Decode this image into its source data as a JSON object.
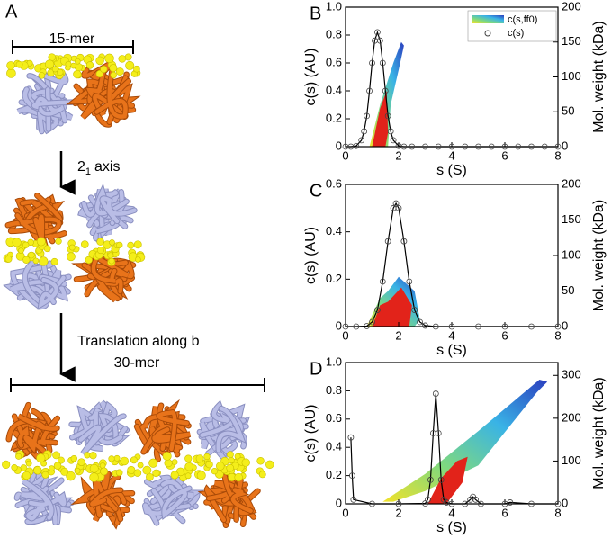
{
  "diagram": {
    "panel_label": "A",
    "top_label": "15-mer",
    "axis_label": {
      "base": "2",
      "subscript": "1",
      "text": "axis"
    },
    "translation_label": "Translation along b",
    "bottom_label": "30-mer"
  },
  "chart_data": [
    {
      "type": "line",
      "panel_label": "B",
      "x_label": "s (S)",
      "y_label": "c(s) (AU)",
      "y2_label": "Mol. weight (kDa)",
      "xlim": [
        0,
        8
      ],
      "xticks": [
        0,
        2,
        4,
        6,
        8
      ],
      "ylim": [
        0,
        1
      ],
      "yticks": [
        0,
        0.2,
        0.4,
        0.6,
        0.8,
        {
          "value": 1,
          "label": "1.0"
        }
      ],
      "y2lim": [
        0,
        200
      ],
      "y2ticks": [
        0,
        50,
        100,
        150,
        200
      ],
      "series": [
        {
          "name": "c(s)",
          "color": "#000000",
          "x": [
            0,
            0.2,
            0.4,
            0.6,
            0.7,
            0.8,
            0.9,
            1.0,
            1.1,
            1.2,
            1.3,
            1.4,
            1.5,
            1.6,
            1.7,
            1.8,
            2.0,
            2.2,
            2.5,
            3,
            3.5,
            4,
            4.5,
            5,
            5.5,
            6,
            6.5,
            7,
            7.5,
            8
          ],
          "values": [
            0,
            0,
            0.005,
            0.046,
            0.11,
            0.22,
            0.4,
            0.6,
            0.76,
            0.82,
            0.76,
            0.6,
            0.4,
            0.22,
            0.11,
            0.046,
            0.005,
            0,
            0,
            0,
            0,
            0,
            0,
            0,
            0,
            0,
            0,
            0,
            0,
            0
          ]
        }
      ],
      "contour": {
        "name": "c(s,ff0)",
        "axis": "y2",
        "x": [
          0.9,
          1.3,
          1.8,
          2.1,
          2.2,
          2.0,
          1.7,
          1.6,
          1.5,
          1.2
        ],
        "values": [
          0,
          60,
          120,
          150,
          145,
          110,
          60,
          0,
          0,
          0
        ]
      },
      "contour_core": {
        "axis": "y2",
        "x": [
          1.0,
          1.3,
          1.55,
          1.6,
          1.5
        ],
        "values": [
          0,
          55,
          80,
          20,
          0
        ]
      },
      "contour_colors": [
        "#2b3fbf",
        "#39b3e6",
        "#7fd97f",
        "#f2e22a",
        "#e2231a"
      ],
      "legend": "top-right"
    },
    {
      "type": "line",
      "panel_label": "C",
      "x_label": "s (S)",
      "y_label": "c(s) (AU)",
      "y2_label": "Mol. weight (kDa)",
      "xlim": [
        0,
        8
      ],
      "xticks": [
        0,
        2,
        4,
        6,
        8
      ],
      "ylim": [
        0,
        0.6
      ],
      "yticks": [
        0,
        0.2,
        0.4,
        0.6
      ],
      "y2lim": [
        0,
        200
      ],
      "y2ticks": [
        0,
        50,
        100,
        150,
        200
      ],
      "series": [
        {
          "color": "#000000",
          "x": [
            0,
            0.4,
            0.8,
            1.0,
            1.2,
            1.4,
            1.6,
            1.8,
            1.9,
            2.0,
            2.2,
            2.4,
            2.6,
            2.8,
            3.0,
            3.4,
            4,
            5,
            6,
            7,
            8
          ],
          "values": [
            0,
            0,
            0.002,
            0.019,
            0.07,
            0.19,
            0.36,
            0.5,
            0.52,
            0.5,
            0.36,
            0.19,
            0.07,
            0.019,
            0.004,
            0,
            0,
            0,
            0,
            0,
            0
          ]
        }
      ],
      "contour": {
        "axis": "y2",
        "x": [
          0.8,
          1.3,
          1.6,
          2.0,
          2.6,
          2.8,
          2.6,
          2.2,
          1.4
        ],
        "values": [
          0,
          40,
          50,
          70,
          50,
          10,
          0,
          0,
          0
        ]
      },
      "contour_core": {
        "axis": "y2",
        "x": [
          1.0,
          1.3,
          1.6,
          2.1,
          2.5,
          2.4,
          1.2
        ],
        "values": [
          0,
          30,
          35,
          55,
          30,
          0,
          0
        ]
      },
      "contour_colors": [
        "#2b3fbf",
        "#39b3e6",
        "#7fd97f",
        "#f2e22a",
        "#e2231a"
      ]
    },
    {
      "type": "line",
      "panel_label": "D",
      "x_label": "s (S)",
      "y_label": "c(s) (AU)",
      "y2_label": "Mol. weight (kDa)",
      "xlim": [
        0,
        8
      ],
      "xticks": [
        0,
        2,
        4,
        6,
        8
      ],
      "ylim": [
        0,
        1
      ],
      "yticks": [
        0,
        0.2,
        0.4,
        0.6,
        0.8,
        {
          "value": 1,
          "label": "1.0"
        }
      ],
      "y2lim": [
        0,
        330
      ],
      "y2ticks": [
        0,
        100,
        200,
        300
      ],
      "series": [
        {
          "color": "#000000",
          "x": [
            0.2,
            0.25,
            0.3,
            1,
            2,
            3.0,
            3.1,
            3.2,
            3.3,
            3.4,
            3.5,
            3.6,
            3.7,
            3.8,
            4.0,
            4.5,
            4.7,
            4.8,
            4.9,
            5.1,
            6,
            6.2,
            7,
            8
          ],
          "values": [
            0.47,
            0.2,
            0.03,
            0,
            0,
            0.003,
            0.03,
            0.17,
            0.5,
            0.78,
            0.5,
            0.17,
            0.03,
            0.01,
            0,
            0,
            0.03,
            0.05,
            0.03,
            0,
            0,
            0.01,
            0,
            0
          ]
        }
      ],
      "contour": {
        "axis": "y2",
        "x": [
          1.4,
          3,
          5,
          7.3,
          7.6,
          7.2,
          5,
          3,
          1.8
        ],
        "values": [
          5,
          70,
          170,
          290,
          285,
          260,
          90,
          30,
          5
        ]
      },
      "contour_core": {
        "axis": "y2",
        "x": [
          3.1,
          3.6,
          4.2,
          4.6,
          4.4,
          3.8
        ],
        "values": [
          0,
          60,
          100,
          110,
          50,
          0
        ]
      },
      "contour_colors": [
        "#2b3fbf",
        "#39b3e6",
        "#7fd97f",
        "#f2e22a",
        "#e2231a"
      ]
    }
  ]
}
